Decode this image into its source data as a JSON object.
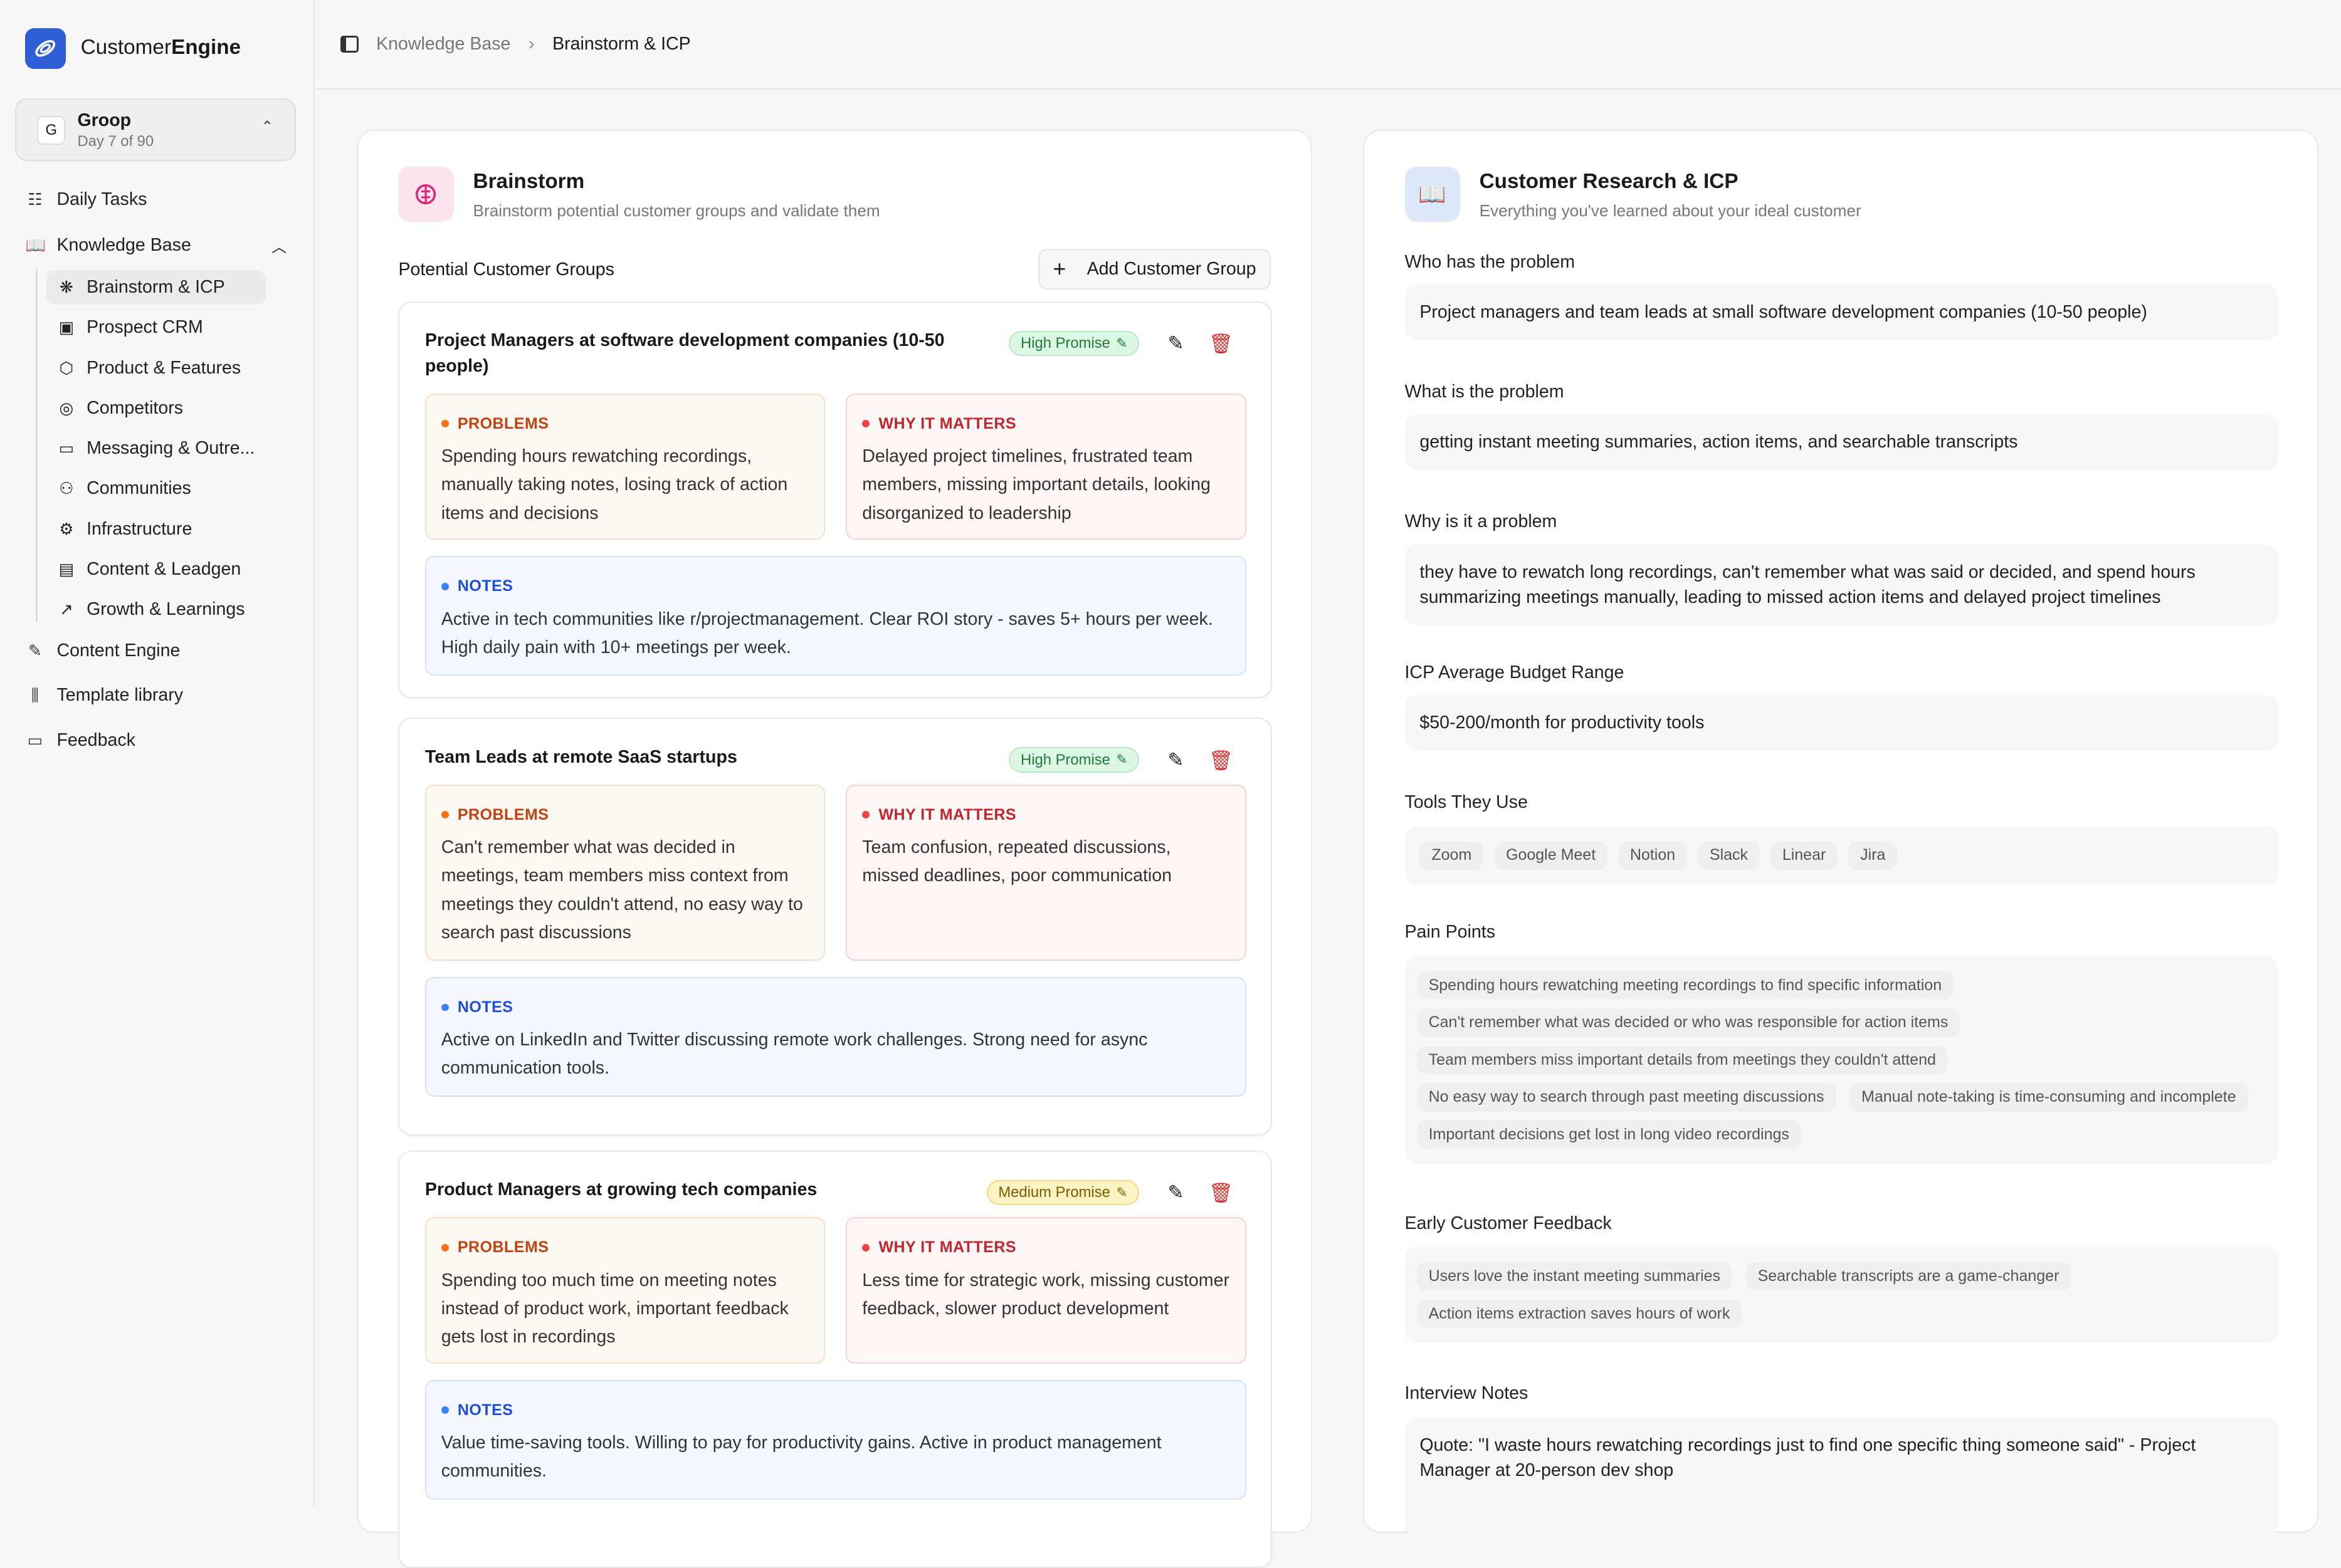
{
  "app": {
    "brand_light": "Customer",
    "brand_bold": "Engine"
  },
  "workspace": {
    "initial": "G",
    "name": "Groop",
    "day": "Day 7 of 90"
  },
  "sidebar": {
    "items": [
      {
        "label": "Daily Tasks",
        "icon": "list-checks-icon"
      },
      {
        "label": "Knowledge Base",
        "icon": "book-open-icon"
      }
    ],
    "sub_items": [
      {
        "label": "Brainstorm & ICP",
        "icon": "brain-icon",
        "active": true
      },
      {
        "label": "Prospect CRM",
        "icon": "contact-icon"
      },
      {
        "label": "Product & Features",
        "icon": "box-icon"
      },
      {
        "label": "Competitors",
        "icon": "target-icon"
      },
      {
        "label": "Messaging & Outre...",
        "icon": "message-square-icon"
      },
      {
        "label": "Communities",
        "icon": "users-icon"
      },
      {
        "label": "Infrastructure",
        "icon": "gear-icon"
      },
      {
        "label": "Content & Leadgen",
        "icon": "file-text-icon"
      },
      {
        "label": "Growth & Learnings",
        "icon": "trending-up-icon"
      }
    ],
    "bottom_items": [
      {
        "label": "Content Engine",
        "icon": "file-pen-icon"
      },
      {
        "label": "Template library",
        "icon": "library-icon"
      },
      {
        "label": "Feedback",
        "icon": "message-square-icon"
      }
    ]
  },
  "breadcrumb": {
    "parent": "Knowledge Base",
    "current": "Brainstorm & ICP"
  },
  "brainstorm": {
    "title": "Brainstorm",
    "subtitle": "Brainstorm potential customer groups and validate them",
    "section_title": "Potential Customer Groups",
    "add_button": "Add Customer Group",
    "labels": {
      "problems": "PROBLEMS",
      "why": "WHY IT MATTERS",
      "notes": "NOTES"
    },
    "groups": [
      {
        "title": "Project Managers at software development companies (10-50 people)",
        "promise": "High Promise",
        "level": "high",
        "problems": "Spending hours rewatching recordings, manually taking notes, losing track of action items and decisions",
        "why": "Delayed project timelines, frustrated team members, missing important details, looking disorganized to leadership",
        "notes": "Active in tech communities like r/projectmanagement. Clear ROI story - saves 5+ hours per week. High daily pain with 10+ meetings per week."
      },
      {
        "title": "Team Leads at remote SaaS startups",
        "promise": "High Promise",
        "level": "high",
        "problems": "Can't remember what was decided in meetings, team members miss context from meetings they couldn't attend, no easy way to search past discussions",
        "why": "Team confusion, repeated discussions, missed deadlines, poor communication",
        "notes": "Active on LinkedIn and Twitter discussing remote work challenges. Strong need for async communication tools."
      },
      {
        "title": "Product Managers at growing tech companies",
        "promise": "Medium Promise",
        "level": "med",
        "problems": "Spending too much time on meeting notes instead of product work, important feedback gets lost in recordings",
        "why": "Less time for strategic work, missing customer feedback, slower product development",
        "notes": "Value time-saving tools. Willing to pay for productivity gains. Active in product management communities."
      }
    ]
  },
  "research": {
    "title": "Customer Research & ICP",
    "subtitle": "Everything you've learned about your ideal customer",
    "who_label": "Who has the problem",
    "who": "Project managers and team leads at small software development companies (10-50 people)",
    "what_label": "What is the problem",
    "what": "getting instant meeting summaries, action items, and searchable transcripts",
    "why_label": "Why is it a problem",
    "why": "they have to rewatch long recordings, can't remember what was said or decided, and spend hours summarizing meetings manually, leading to missed action items and delayed project timelines",
    "budget_label": "ICP Average Budget Range",
    "budget": "$50-200/month for productivity tools",
    "tools_label": "Tools They Use",
    "tools": [
      "Zoom",
      "Google Meet",
      "Notion",
      "Slack",
      "Linear",
      "Jira"
    ],
    "pain_label": "Pain Points",
    "pain_points": [
      "Spending hours rewatching meeting recordings to find specific information",
      "Can't remember what was decided or who was responsible for action items",
      "Team members miss important details from meetings they couldn't attend",
      "No easy way to search through past meeting discussions",
      "Manual note-taking is time-consuming and incomplete",
      "Important decisions get lost in long video recordings"
    ],
    "feedback_label": "Early Customer Feedback",
    "feedback": [
      "Users love the instant meeting summaries",
      "Searchable transcripts are a game-changer",
      "Action items extraction saves hours of work"
    ],
    "interview_label": "Interview Notes",
    "interview": "Quote: \"I waste hours rewatching recordings just to find one specific thing someone said\" - Project Manager at 20-person dev shop"
  },
  "colors": {
    "accent": "#2f5fd6",
    "high": "#237a3b",
    "medium": "#7a5d00",
    "danger": "#d92b2b"
  }
}
